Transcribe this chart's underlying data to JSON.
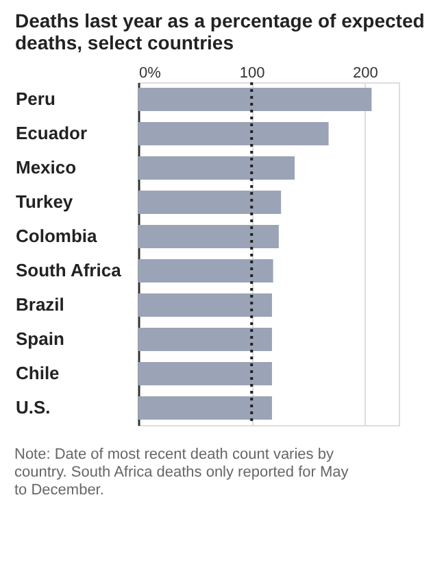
{
  "chart_data": {
    "type": "bar",
    "orientation": "horizontal",
    "title": "Deaths last year as a percentage of expected deaths, select countries",
    "categories": [
      "Peru",
      "Ecuador",
      "Mexico",
      "Turkey",
      "Colombia",
      "South Africa",
      "Brazil",
      "Spain",
      "Chile",
      "U.S."
    ],
    "values": [
      206,
      168,
      138,
      126,
      124,
      119,
      118,
      118,
      118,
      118
    ],
    "color": "#9ba3b7",
    "xlim": [
      0,
      230
    ],
    "xticks": [
      {
        "value": 0,
        "label": "0%"
      },
      100,
      200
    ],
    "grid": "x",
    "ref_lines": [
      {
        "axis": "x",
        "value": 100,
        "color": "#222222",
        "line_style": "dotted"
      }
    ],
    "annotations": [
      "Note: Date of most recent death count varies by country. South Africa deaths only reported for May to December."
    ]
  }
}
